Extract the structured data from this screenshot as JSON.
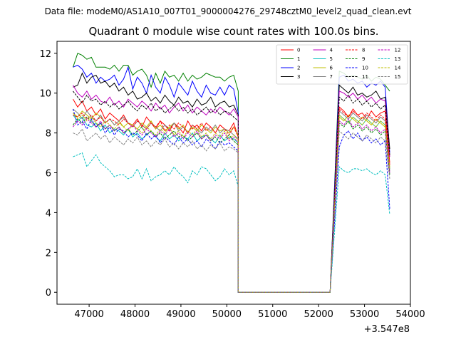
{
  "chart_data": {
    "type": "line",
    "suptitle": "Data file: modeM0/AS1A10_007T01_9000004276_29748cztM0_level2_quad_clean.evt",
    "title": "Quadrant 0 module wise count rates with 100.0s bins.",
    "xlabel": "",
    "ylabel": "",
    "x_offset_label": "+3.547e8",
    "x_offset": 354700000,
    "xlim": [
      46300,
      54000
    ],
    "ylim": [
      -0.6,
      12.6
    ],
    "x_ticks": [
      47000,
      48000,
      49000,
      50000,
      51000,
      52000,
      53000,
      54000
    ],
    "x_tick_labels": [
      "47000",
      "48000",
      "49000",
      "50000",
      "51000",
      "52000",
      "53000",
      "54000"
    ],
    "y_ticks": [
      0,
      2,
      4,
      6,
      8,
      10,
      12
    ],
    "y_tick_labels": [
      "0",
      "2",
      "4",
      "6",
      "8",
      "10",
      "12"
    ],
    "grid": false,
    "legend_location": "top-right",
    "legend_columns": 4,
    "segments": [
      {
        "start": 46650,
        "step": 100,
        "count": 37
      },
      {
        "start": 50250,
        "step": 100,
        "count": 21
      },
      {
        "start": 52450,
        "step": 100,
        "count": 12
      }
    ],
    "series": [
      {
        "name": "0",
        "color": "#ff0000",
        "dash": "solid",
        "seg1": [
          9.7,
          9.3,
          9.6,
          9.1,
          9.3,
          8.9,
          9.2,
          8.7,
          9.0,
          8.8,
          8.6,
          8.9,
          8.5,
          8.4,
          8.7,
          8.3,
          8.8,
          8.5,
          8.2,
          8.6,
          8.4,
          8.1,
          8.5,
          8.3,
          8.0,
          8.6,
          8.2,
          8.4,
          8.1,
          8.5,
          8.3,
          8.0,
          8.4,
          8.2,
          8.1,
          8.5,
          7.8
        ],
        "seg3": [
          9.3,
          9.1,
          8.8,
          9.2,
          8.9,
          9.0,
          8.7,
          9.1,
          8.8,
          9.0,
          9.1,
          6.5
        ]
      },
      {
        "name": "1",
        "color": "#008000",
        "dash": "solid",
        "seg1": [
          11.3,
          12.0,
          11.9,
          11.7,
          11.8,
          11.3,
          11.3,
          11.3,
          11.2,
          11.4,
          11.1,
          11.4,
          11.4,
          10.9,
          11.1,
          11.2,
          10.9,
          10.3,
          11.0,
          10.5,
          11.1,
          10.8,
          10.9,
          10.6,
          11.0,
          10.6,
          10.9,
          10.7,
          10.8,
          11.0,
          10.9,
          10.8,
          10.8,
          10.6,
          10.8,
          10.9,
          10.1
        ],
        "seg3": [
          11.1,
          11.0,
          10.8,
          10.9,
          10.8,
          10.7,
          10.9,
          10.6,
          10.8,
          10.7,
          10.4,
          10.1
        ]
      },
      {
        "name": "2",
        "color": "#0000ff",
        "dash": "solid",
        "seg1": [
          11.3,
          11.4,
          11.2,
          10.8,
          11.0,
          10.5,
          10.8,
          10.6,
          10.7,
          10.9,
          10.4,
          10.7,
          11.3,
          10.2,
          10.8,
          10.5,
          10.0,
          10.9,
          10.3,
          10.0,
          10.8,
          10.4,
          9.8,
          10.5,
          10.2,
          9.9,
          10.6,
          10.1,
          9.8,
          10.4,
          10.0,
          9.9,
          10.3,
          9.9,
          10.4,
          10.2,
          9.0
        ],
        "seg3": [
          10.8,
          10.9,
          10.6,
          10.7,
          10.5,
          10.6,
          10.3,
          10.5,
          10.4,
          10.6,
          10.3,
          7.0
        ]
      },
      {
        "name": "3",
        "color": "#000000",
        "dash": "solid",
        "seg1": [
          10.3,
          10.4,
          11.0,
          10.5,
          10.8,
          10.9,
          10.5,
          10.6,
          10.3,
          10.5,
          10.1,
          10.3,
          9.9,
          10.1,
          9.7,
          9.8,
          10.0,
          9.6,
          9.8,
          9.5,
          9.9,
          9.6,
          9.4,
          9.8,
          9.5,
          9.6,
          9.3,
          9.7,
          9.4,
          9.5,
          9.8,
          9.3,
          9.5,
          9.6,
          9.3,
          9.4,
          8.9
        ],
        "seg3": [
          10.4,
          10.2,
          10.0,
          10.3,
          9.9,
          10.0,
          9.8,
          9.9,
          10.1,
          9.7,
          9.8,
          7.2
        ]
      },
      {
        "name": "4",
        "color": "#bf00bf",
        "dash": "solid",
        "seg1": [
          10.4,
          10.0,
          9.8,
          10.1,
          9.7,
          9.9,
          9.6,
          9.5,
          9.8,
          9.4,
          9.6,
          9.3,
          9.7,
          9.5,
          9.3,
          9.6,
          9.4,
          9.1,
          9.5,
          9.2,
          9.4,
          9.0,
          9.3,
          9.5,
          9.1,
          9.4,
          9.0,
          9.3,
          9.1,
          8.9,
          9.2,
          9.0,
          9.3,
          9.1,
          8.9,
          9.2,
          8.8
        ],
        "seg3": [
          10.1,
          10.0,
          9.8,
          10.0,
          9.7,
          9.9,
          9.6,
          9.8,
          9.5,
          9.7,
          9.6,
          6.8
        ]
      },
      {
        "name": "5",
        "color": "#00bfbf",
        "dash": "solid",
        "seg1": [
          8.9,
          8.6,
          8.8,
          8.4,
          8.3,
          8.5,
          8.1,
          8.4,
          8.0,
          8.2,
          8.1,
          7.9,
          8.2,
          7.8,
          8.0,
          7.7,
          7.9,
          8.1,
          7.8,
          7.6,
          8.0,
          7.7,
          7.9,
          7.6,
          7.8,
          7.7,
          8.0,
          7.6,
          7.8,
          7.9,
          7.7,
          7.5,
          7.9,
          7.6,
          7.8,
          7.7,
          7.5
        ],
        "seg3": [
          8.9,
          8.7,
          8.5,
          8.8,
          8.6,
          8.4,
          8.7,
          8.5,
          8.3,
          8.6,
          8.4,
          6.2
        ]
      },
      {
        "name": "6",
        "color": "#bfbf00",
        "dash": "solid",
        "seg1": [
          9.0,
          8.8,
          9.1,
          8.9,
          8.7,
          9.0,
          8.8,
          8.5,
          8.7,
          8.4,
          8.6,
          8.3,
          8.5,
          8.4,
          8.2,
          8.5,
          8.3,
          8.6,
          8.2,
          8.4,
          8.1,
          8.3,
          8.5,
          8.2,
          8.4,
          8.0,
          8.3,
          8.1,
          8.4,
          8.2,
          8.0,
          8.3,
          8.1,
          8.2,
          8.0,
          8.3,
          7.9
        ],
        "seg3": [
          8.8,
          8.6,
          8.9,
          8.7,
          8.5,
          8.8,
          8.6,
          8.4,
          8.7,
          8.5,
          8.3,
          6.3
        ]
      },
      {
        "name": "7",
        "color": "#808080",
        "dash": "solid",
        "seg1": [
          9.2,
          9.0,
          8.7,
          9.1,
          8.8,
          8.6,
          8.9,
          8.5,
          8.7,
          8.4,
          8.6,
          8.8,
          8.5,
          8.3,
          8.6,
          8.4,
          8.2,
          8.5,
          8.3,
          8.1,
          8.4,
          8.2,
          8.5,
          8.1,
          8.3,
          8.0,
          8.4,
          8.2,
          8.0,
          8.3,
          8.1,
          8.4,
          8.0,
          8.2,
          8.1,
          7.9,
          7.7
        ],
        "seg3": [
          9.1,
          8.9,
          8.7,
          9.0,
          8.8,
          8.6,
          8.9,
          8.7,
          8.5,
          8.8,
          8.6,
          6.1
        ]
      },
      {
        "name": "8",
        "color": "#ff0000",
        "dash": "dashed",
        "seg1": [
          8.9,
          8.8,
          9.0,
          8.7,
          8.9,
          8.6,
          8.8,
          8.5,
          8.7,
          8.6,
          8.4,
          8.7,
          8.5,
          8.3,
          8.6,
          8.4,
          8.2,
          8.5,
          8.3,
          8.6,
          8.1,
          8.4,
          8.2,
          8.5,
          8.3,
          8.0,
          8.4,
          8.2,
          8.5,
          8.1,
          8.3,
          8.0,
          8.4,
          8.2,
          7.9,
          8.3,
          7.8
        ],
        "seg3": [
          9.2,
          9.0,
          8.8,
          9.1,
          8.9,
          8.7,
          9.0,
          8.8,
          8.6,
          8.9,
          8.7,
          6.4
        ]
      },
      {
        "name": "9",
        "color": "#008000",
        "dash": "dashed",
        "seg1": [
          8.4,
          8.7,
          8.5,
          8.8,
          8.6,
          8.3,
          8.5,
          8.2,
          8.4,
          8.1,
          8.3,
          8.0,
          8.2,
          7.9,
          8.1,
          8.3,
          7.9,
          8.1,
          7.8,
          8.0,
          7.7,
          7.9,
          8.1,
          7.8,
          7.9,
          7.6,
          7.8,
          8.0,
          7.7,
          7.9,
          7.6,
          7.8,
          7.5,
          7.7,
          7.9,
          7.6,
          7.4
        ],
        "seg3": [
          8.5,
          8.3,
          8.6,
          8.2,
          8.4,
          8.1,
          8.3,
          8.0,
          8.2,
          7.9,
          8.1,
          5.9
        ]
      },
      {
        "name": "10",
        "color": "#0000ff",
        "dash": "dashed",
        "seg1": [
          9.2,
          8.4,
          8.6,
          8.2,
          8.7,
          8.3,
          8.5,
          8.0,
          8.3,
          7.9,
          8.2,
          8.1,
          7.8,
          8.0,
          7.9,
          7.6,
          8.0,
          7.7,
          7.9,
          7.5,
          7.8,
          7.6,
          7.4,
          7.8,
          7.5,
          7.7,
          7.4,
          7.6,
          7.3,
          7.7,
          7.5,
          7.2,
          7.6,
          7.4,
          7.5,
          7.3,
          7.1
        ],
        "seg3": [
          7.3,
          7.9,
          8.1,
          7.7,
          8.0,
          7.6,
          7.8,
          7.5,
          7.7,
          7.4,
          7.6,
          4.2
        ]
      },
      {
        "name": "11",
        "color": "#000000",
        "dash": "dashed",
        "seg1": [
          10.1,
          9.8,
          9.5,
          9.9,
          9.6,
          9.7,
          9.4,
          9.6,
          9.3,
          9.5,
          9.2,
          9.4,
          9.6,
          9.3,
          9.1,
          9.4,
          9.2,
          9.5,
          9.1,
          9.3,
          9.0,
          9.2,
          9.4,
          9.1,
          9.3,
          9.0,
          9.2,
          8.9,
          9.1,
          9.3,
          9.0,
          9.2,
          8.9,
          9.1,
          9.0,
          8.8,
          8.6
        ],
        "seg3": [
          9.8,
          9.6,
          9.9,
          9.5,
          9.7,
          9.4,
          9.6,
          9.3,
          9.5,
          9.2,
          9.4,
          6.9
        ]
      },
      {
        "name": "12",
        "color": "#bf00bf",
        "dash": "dashed",
        "seg1": [
          8.3,
          8.6,
          8.4,
          8.7,
          8.5,
          8.3,
          8.6,
          8.2,
          8.4,
          8.1,
          8.3,
          8.0,
          8.2,
          8.4,
          8.1,
          7.9,
          8.2,
          8.0,
          7.8,
          8.1,
          7.9,
          8.2,
          7.8,
          8.0,
          7.7,
          8.0,
          7.8,
          8.1,
          7.7,
          7.9,
          7.6,
          7.9,
          7.7,
          8.0,
          7.6,
          7.8,
          7.5
        ],
        "seg3": [
          8.6,
          8.4,
          8.7,
          8.3,
          8.5,
          8.2,
          8.4,
          8.1,
          8.3,
          8.0,
          8.2,
          6.0
        ]
      },
      {
        "name": "13",
        "color": "#00bfbf",
        "dash": "dashed",
        "seg1": [
          6.8,
          6.9,
          7.0,
          6.3,
          6.6,
          6.9,
          6.5,
          6.3,
          6.1,
          5.8,
          5.9,
          5.9,
          5.7,
          5.8,
          6.2,
          5.7,
          6.2,
          5.6,
          5.8,
          5.9,
          6.1,
          5.9,
          6.3,
          6.0,
          5.8,
          5.5,
          6.1,
          5.9,
          6.3,
          6.2,
          5.9,
          5.6,
          5.8,
          6.2,
          5.9,
          6.1,
          5.3
        ],
        "seg3": [
          6.3,
          6.1,
          6.0,
          6.2,
          6.2,
          6.1,
          6.2,
          6.0,
          5.9,
          6.1,
          5.9,
          3.9
        ]
      },
      {
        "name": "14",
        "color": "#bfbf00",
        "dash": "dashed",
        "seg1": [
          9.0,
          8.7,
          8.9,
          8.6,
          8.8,
          8.5,
          8.3,
          8.6,
          8.4,
          8.2,
          8.5,
          8.3,
          8.1,
          8.4,
          8.2,
          8.0,
          8.3,
          8.1,
          7.9,
          8.2,
          8.0,
          8.3,
          7.9,
          8.1,
          7.8,
          8.1,
          7.9,
          8.2,
          7.8,
          8.0,
          7.7,
          8.0,
          7.8,
          8.1,
          7.7,
          7.9,
          7.6
        ],
        "seg3": [
          8.9,
          8.7,
          8.5,
          8.8,
          8.6,
          8.4,
          8.7,
          8.5,
          8.3,
          8.6,
          8.4,
          6.2
        ]
      },
      {
        "name": "15",
        "color": "#808080",
        "dash": "dashed",
        "seg1": [
          8.0,
          7.9,
          8.2,
          7.6,
          7.8,
          8.0,
          7.7,
          7.9,
          7.5,
          7.8,
          7.6,
          7.4,
          7.7,
          7.5,
          7.8,
          7.4,
          7.6,
          7.3,
          7.6,
          7.4,
          7.7,
          7.3,
          7.5,
          7.2,
          7.5,
          7.3,
          7.6,
          7.2,
          7.4,
          7.1,
          7.4,
          7.2,
          7.5,
          7.1,
          7.3,
          7.2,
          7.0
        ],
        "seg3": [
          8.1,
          7.9,
          7.7,
          8.0,
          7.8,
          7.6,
          7.9,
          7.7,
          7.5,
          7.8,
          7.6,
          5.7
        ]
      }
    ]
  }
}
